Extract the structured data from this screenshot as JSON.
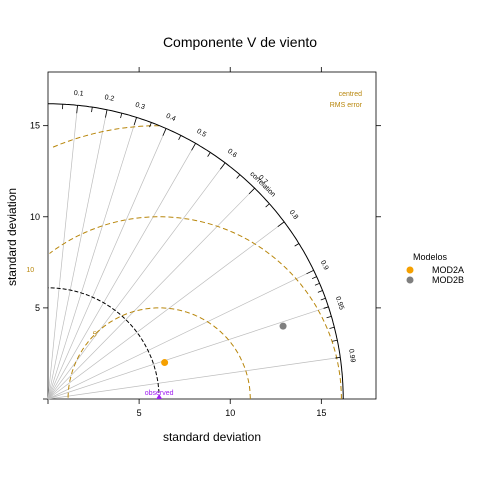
{
  "chart_data": {
    "type": "scatter",
    "subtype": "taylor-diagram",
    "title": "Componente V de viento",
    "xlabel": "standard deviation",
    "ylabel": "standard deviation",
    "xlim": [
      0,
      18
    ],
    "ylim": [
      0,
      18
    ],
    "x_ticks": [
      5,
      10,
      15
    ],
    "y_ticks": [
      5,
      10,
      15
    ],
    "observed": {
      "label": "observed",
      "sd": 6.1,
      "color": "#a020f0"
    },
    "outer_arc_sd": 16.2,
    "correlation_label": "correlation",
    "correlation_ticks": [
      0.1,
      0.2,
      0.3,
      0.4,
      0.5,
      0.6,
      0.7,
      0.8,
      0.9,
      0.95,
      0.99
    ],
    "rms_label_lines": [
      "centred",
      "RMS error"
    ],
    "rms_contours": [
      5,
      10,
      15
    ],
    "rms_contour_labels": [
      "5",
      "10"
    ],
    "rms_color": "#b8860b",
    "legend": {
      "title": "Modelos",
      "position": "right"
    },
    "series": [
      {
        "name": "MOD2A",
        "x": 6.4,
        "y": 2.0,
        "color": "#f5a000"
      },
      {
        "name": "MOD2B",
        "x": 12.9,
        "y": 4.0,
        "color": "#7f7f7f"
      }
    ]
  }
}
